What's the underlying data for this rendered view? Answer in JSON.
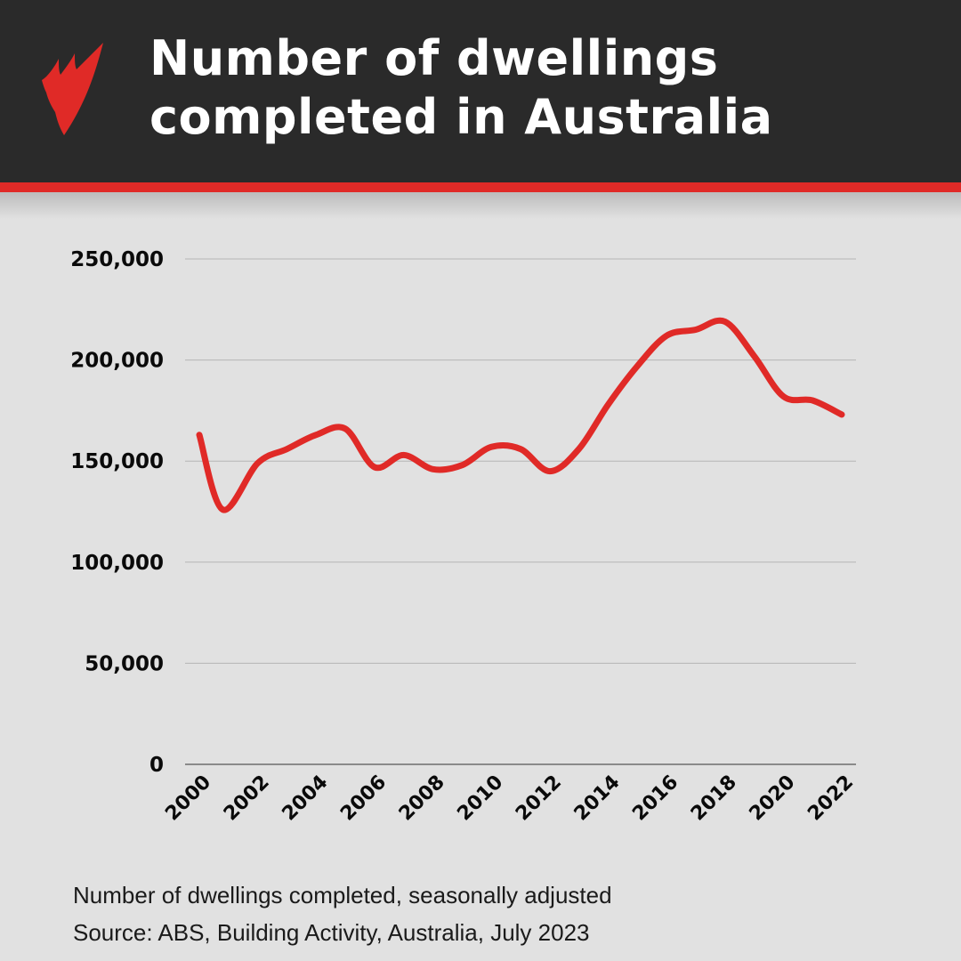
{
  "header": {
    "title_line1": "Number of dwellings",
    "title_line2": "completed in Australia",
    "logo": "sbs-logo-icon"
  },
  "colors": {
    "header_bg": "#2a2a2a",
    "accent": "#e02a27",
    "line": "#e02a27",
    "background": "#e1e1e1",
    "grid": "#b5b5b5"
  },
  "footer": {
    "note": "Number of dwellings completed, seasonally adjusted",
    "source": "Source: ABS, Building Activity, Australia, July 2023"
  },
  "chart_data": {
    "type": "line",
    "title": "Number of dwellings completed in Australia",
    "subtitle": "Number of dwellings completed, seasonally adjusted",
    "xlabel": "",
    "ylabel": "",
    "ylim": [
      0,
      250000
    ],
    "xlim": [
      2000,
      2022
    ],
    "grid": true,
    "legend": "none",
    "y_ticks": [
      0,
      50000,
      100000,
      150000,
      200000,
      250000
    ],
    "y_tick_labels": [
      "0",
      "50,000",
      "100,000",
      "150,000",
      "200,000",
      "250,000"
    ],
    "x_tick_labels": [
      "2000",
      "2002",
      "2004",
      "2006",
      "2008",
      "2010",
      "2012",
      "2014",
      "2016",
      "2018",
      "2020",
      "2022"
    ],
    "series": [
      {
        "name": "Dwellings completed",
        "x": [
          2000,
          2000.8,
          2002,
          2003,
          2004,
          2005,
          2006,
          2007,
          2008,
          2009,
          2010,
          2011,
          2012,
          2013,
          2014,
          2015,
          2016,
          2017,
          2018,
          2019,
          2020,
          2021,
          2022
        ],
        "values": [
          163000,
          126000,
          149000,
          156000,
          163000,
          166000,
          147000,
          153000,
          146000,
          148000,
          157000,
          156000,
          145000,
          156000,
          178000,
          197000,
          212000,
          215000,
          219000,
          202000,
          182000,
          180000,
          173000
        ]
      }
    ],
    "annotation": "Source: ABS, Building Activity, Australia, July 2023"
  }
}
